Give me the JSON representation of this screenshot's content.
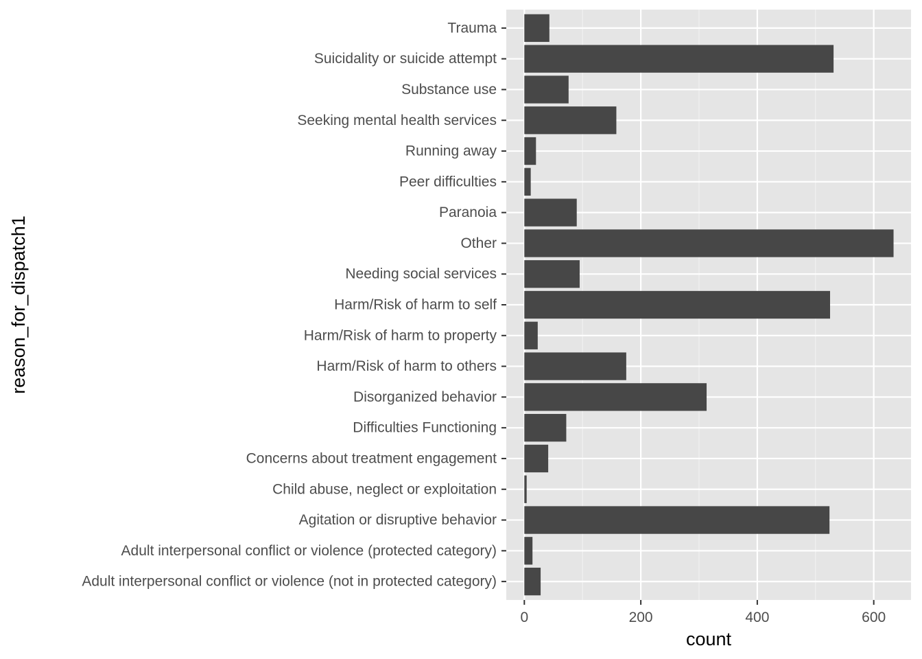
{
  "chart_data": {
    "type": "bar",
    "orientation": "horizontal",
    "title": "",
    "xlabel": "count",
    "ylabel": "reason_for_dispatch1",
    "xlim": [
      -31,
      664
    ],
    "x_ticks": [
      0,
      200,
      400,
      600
    ],
    "grid": true,
    "categories": [
      "Adult interpersonal conflict or violence (not in protected category)",
      "Adult interpersonal conflict or violence (protected category)",
      "Agitation or disruptive behavior",
      "Child abuse, neglect or exploitation",
      "Concerns about treatment engagement",
      "Difficulties Functioning",
      "Disorganized behavior",
      "Harm/Risk of harm to others",
      "Harm/Risk of harm to property",
      "Harm/Risk of harm to self",
      "Needing social services",
      "Other",
      "Paranoia",
      "Peer difficulties",
      "Running away",
      "Seeking mental health services",
      "Substance use",
      "Suicidality or suicide attempt",
      "Trauma"
    ],
    "values": [
      28,
      14,
      524,
      4,
      41,
      72,
      313,
      175,
      23,
      525,
      95,
      634,
      90,
      11,
      20,
      158,
      76,
      531,
      43
    ],
    "colors": {
      "bar": "#474747",
      "panel": "#e5e5e5",
      "grid_major": "#ffffff",
      "grid_minor": "#f2f2f2",
      "tick": "#333333",
      "text": "#4d4d4d"
    }
  }
}
